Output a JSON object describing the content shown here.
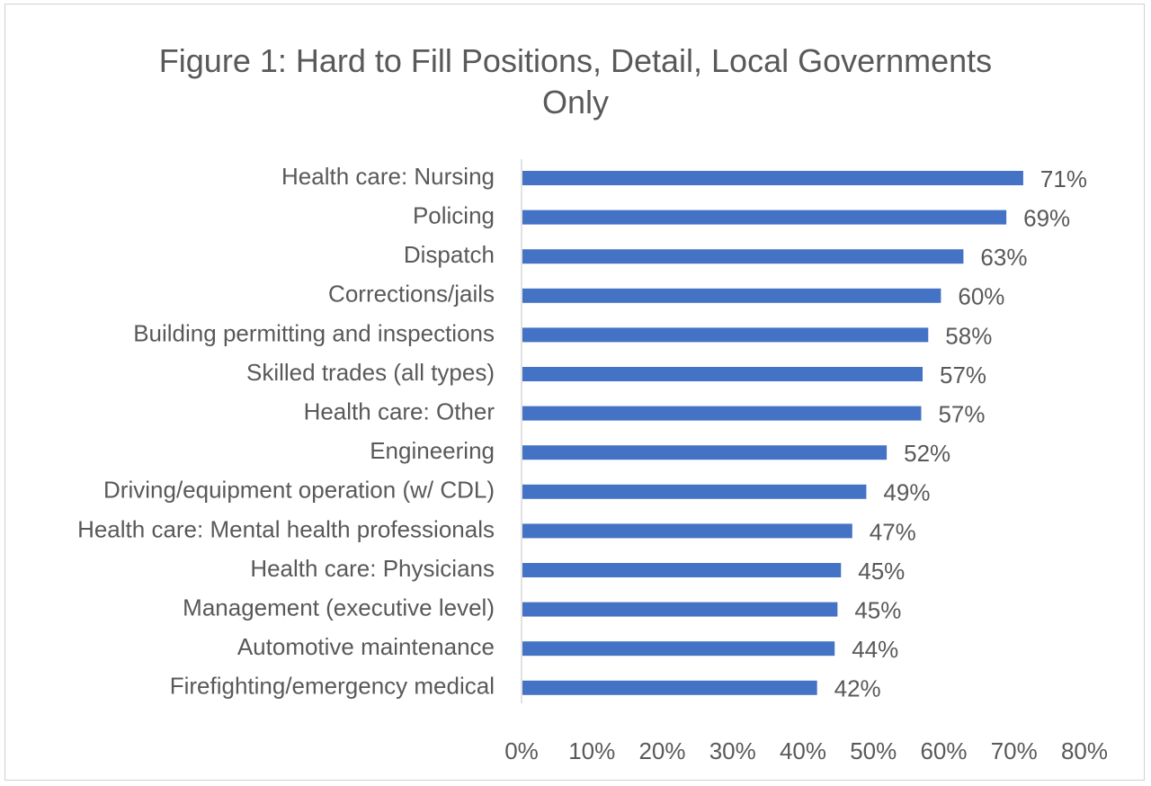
{
  "chart_data": {
    "type": "bar",
    "orientation": "horizontal",
    "title_line1": "Figure 1: Hard to Fill Positions, Detail, Local Governments",
    "title_line2": "Only",
    "categories": [
      "Health care: Nursing",
      "Policing",
      "Dispatch",
      "Corrections/jails",
      "Building permitting and inspections",
      "Skilled trades (all types)",
      "Health care: Other",
      "Engineering",
      "Driving/equipment operation (w/ CDL)",
      "Health care: Mental health professionals",
      "Health care: Physicians",
      "Management (executive level)",
      "Automotive maintenance",
      "Firefighting/emergency medical"
    ],
    "values": [
      71.3,
      68.9,
      62.8,
      59.6,
      57.8,
      57.0,
      56.8,
      51.9,
      49.0,
      47.0,
      45.4,
      44.9,
      44.5,
      42.0
    ],
    "data_labels": [
      "71%",
      "69%",
      "63%",
      "60%",
      "58%",
      "57%",
      "57%",
      "52%",
      "49%",
      "47%",
      "45%",
      "45%",
      "44%",
      "42%"
    ],
    "xlim": [
      0,
      80
    ],
    "x_ticks": [
      0,
      10,
      20,
      30,
      40,
      50,
      60,
      70,
      80
    ],
    "x_tick_labels": [
      "0%",
      "10%",
      "20%",
      "30%",
      "40%",
      "50%",
      "60%",
      "70%",
      "80%"
    ],
    "xlabel": "",
    "ylabel": "",
    "grid": false,
    "legend": "none",
    "bar_color": "#4472C4",
    "text_color": "#595959",
    "axis_color": "#d9d9d9"
  }
}
